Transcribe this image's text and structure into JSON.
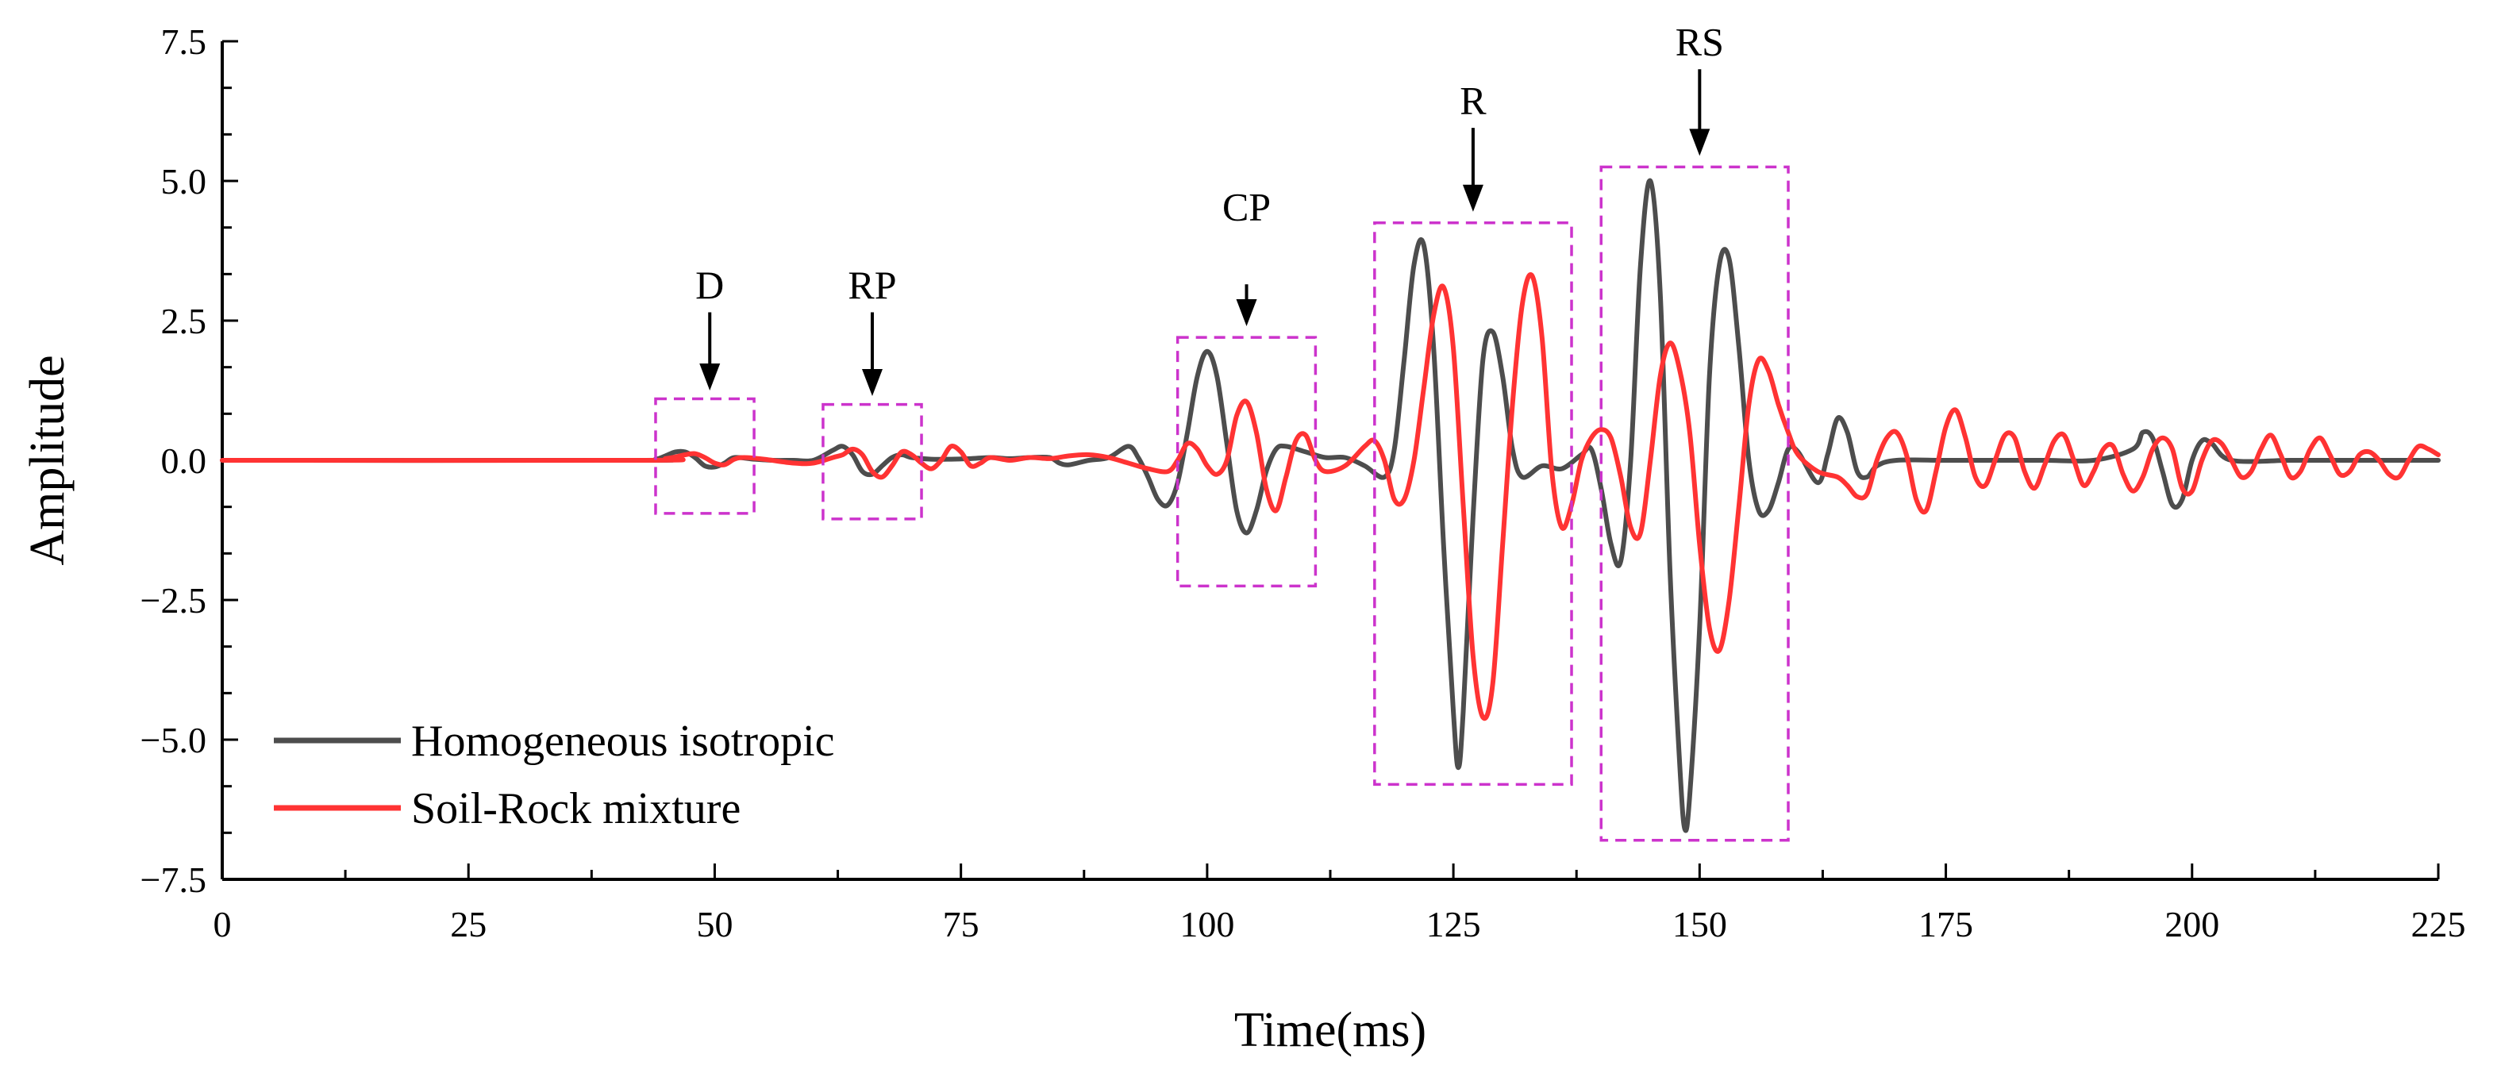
{
  "chart_data": {
    "type": "line",
    "title": "",
    "xlabel": "Time(ms)",
    "ylabel": "Amplitude",
    "xlim": [
      0,
      225
    ],
    "ylim": [
      -7.5,
      7.5
    ],
    "x_ticks": [
      "0",
      "25",
      "50",
      "75",
      "100",
      "125",
      "150",
      "175",
      "200",
      "225"
    ],
    "x_tick_values": [
      0,
      25,
      50,
      75,
      100,
      125,
      150,
      175,
      200,
      225
    ],
    "y_ticks": [
      "7.5",
      "5.0",
      "2.5",
      "0.0",
      "−2.5",
      "−5.0",
      "−7.5"
    ],
    "y_tick_values": [
      7.5,
      5.0,
      2.5,
      0.0,
      -2.5,
      -5.0,
      -7.5
    ],
    "grid": false,
    "legend_position": "bottom-left",
    "series": [
      {
        "name": "Homogeneous isotropic",
        "color": "#4d4d4d",
        "points": [
          [
            0,
            0
          ],
          [
            42,
            0
          ],
          [
            44,
            0.02
          ],
          [
            45,
            0.08
          ],
          [
            46,
            0.15
          ],
          [
            47,
            0.15
          ],
          [
            48,
            0.05
          ],
          [
            49,
            -0.1
          ],
          [
            50,
            -0.12
          ],
          [
            51,
            -0.05
          ],
          [
            52,
            0.05
          ],
          [
            54,
            0.02
          ],
          [
            56,
            0
          ],
          [
            58,
            0
          ],
          [
            60,
            0
          ],
          [
            62,
            0.18
          ],
          [
            63,
            0.25
          ],
          [
            64,
            0.1
          ],
          [
            65,
            -0.2
          ],
          [
            66,
            -0.25
          ],
          [
            67,
            -0.1
          ],
          [
            68,
            0.05
          ],
          [
            69,
            0.1
          ],
          [
            70,
            0.05
          ],
          [
            72,
            0.02
          ],
          [
            74,
            0.02
          ],
          [
            76,
            0.03
          ],
          [
            78,
            0.05
          ],
          [
            80,
            0.03
          ],
          [
            82,
            0.05
          ],
          [
            84,
            0.05
          ],
          [
            85,
            -0.05
          ],
          [
            86,
            -0.08
          ],
          [
            88,
            0
          ],
          [
            90,
            0.05
          ],
          [
            92,
            0.25
          ],
          [
            93,
            0.05
          ],
          [
            94,
            -0.3
          ],
          [
            95,
            -0.7
          ],
          [
            96,
            -0.8
          ],
          [
            97,
            -0.4
          ],
          [
            98,
            0.5
          ],
          [
            99,
            1.5
          ],
          [
            100,
            1.95
          ],
          [
            101,
            1.5
          ],
          [
            102,
            0.3
          ],
          [
            103,
            -0.9
          ],
          [
            104,
            -1.3
          ],
          [
            105,
            -0.9
          ],
          [
            106,
            -0.2
          ],
          [
            107,
            0.2
          ],
          [
            108,
            0.25
          ],
          [
            110,
            0.15
          ],
          [
            112,
            0.05
          ],
          [
            114,
            0.05
          ],
          [
            116,
            -0.1
          ],
          [
            118,
            -0.3
          ],
          [
            119,
            0.2
          ],
          [
            120,
            1.8
          ],
          [
            121,
            3.5
          ],
          [
            122,
            3.85
          ],
          [
            123,
            2.0
          ],
          [
            124,
            -1.5
          ],
          [
            125,
            -4.5
          ],
          [
            125.5,
            -5.5
          ],
          [
            126,
            -4.5
          ],
          [
            127,
            -1.0
          ],
          [
            128,
            1.8
          ],
          [
            129,
            2.3
          ],
          [
            130,
            1.5
          ],
          [
            131,
            0.2
          ],
          [
            132,
            -0.3
          ],
          [
            134,
            -0.1
          ],
          [
            136,
            -0.15
          ],
          [
            138,
            0.1
          ],
          [
            139,
            0.2
          ],
          [
            140,
            -0.5
          ],
          [
            141,
            -1.5
          ],
          [
            142,
            -1.8
          ],
          [
            143,
            0
          ],
          [
            144,
            3.5
          ],
          [
            145,
            5.0
          ],
          [
            146,
            3.0
          ],
          [
            147,
            -2.0
          ],
          [
            148,
            -5.5
          ],
          [
            148.5,
            -6.6
          ],
          [
            149,
            -6.0
          ],
          [
            150,
            -3.0
          ],
          [
            151,
            1.5
          ],
          [
            152,
            3.5
          ],
          [
            153,
            3.6
          ],
          [
            154,
            2.0
          ],
          [
            155,
            0
          ],
          [
            156,
            -0.9
          ],
          [
            157,
            -0.9
          ],
          [
            158,
            -0.4
          ],
          [
            159,
            0.2
          ],
          [
            160,
            0.15
          ],
          [
            162,
            -0.4
          ],
          [
            163,
            0.1
          ],
          [
            164,
            0.75
          ],
          [
            165,
            0.5
          ],
          [
            166,
            -0.2
          ],
          [
            167,
            -0.3
          ],
          [
            168,
            -0.1
          ],
          [
            170,
            0
          ],
          [
            175,
            0
          ],
          [
            180,
            0
          ],
          [
            185,
            0
          ],
          [
            190,
            0
          ],
          [
            194,
            0.2
          ],
          [
            195,
            0.5
          ],
          [
            196,
            0.4
          ],
          [
            197,
            -0.2
          ],
          [
            198,
            -0.8
          ],
          [
            199,
            -0.7
          ],
          [
            200,
            0
          ],
          [
            201,
            0.35
          ],
          [
            202,
            0.3
          ],
          [
            204,
            0
          ],
          [
            210,
            0
          ],
          [
            215,
            0
          ],
          [
            220,
            0
          ],
          [
            225,
            0
          ]
        ]
      },
      {
        "name": "Soil-Rock mixture",
        "color": "#ff3333",
        "points": [
          [
            0,
            0
          ],
          [
            43,
            0
          ],
          [
            45,
            0.03
          ],
          [
            46,
            0.06
          ],
          [
            47,
            0.1
          ],
          [
            48,
            0.12
          ],
          [
            49,
            0.05
          ],
          [
            50,
            -0.05
          ],
          [
            51,
            -0.08
          ],
          [
            52,
            0.02
          ],
          [
            53,
            0.05
          ],
          [
            55,
            0.02
          ],
          [
            58,
            -0.05
          ],
          [
            60,
            -0.05
          ],
          [
            62,
            0.05
          ],
          [
            63,
            0.1
          ],
          [
            64,
            0.2
          ],
          [
            65,
            0.1
          ],
          [
            66,
            -0.2
          ],
          [
            67,
            -0.3
          ],
          [
            68,
            -0.1
          ],
          [
            69,
            0.15
          ],
          [
            70,
            0.1
          ],
          [
            71,
            -0.05
          ],
          [
            72,
            -0.15
          ],
          [
            73,
            0
          ],
          [
            74,
            0.25
          ],
          [
            75,
            0.15
          ],
          [
            76,
            -0.1
          ],
          [
            77,
            -0.05
          ],
          [
            78,
            0.05
          ],
          [
            80,
            0
          ],
          [
            82,
            0.05
          ],
          [
            84,
            0.03
          ],
          [
            86,
            0.08
          ],
          [
            88,
            0.1
          ],
          [
            90,
            0.05
          ],
          [
            92,
            -0.05
          ],
          [
            94,
            -0.15
          ],
          [
            96,
            -0.2
          ],
          [
            97,
            0
          ],
          [
            98,
            0.3
          ],
          [
            99,
            0.2
          ],
          [
            100,
            -0.1
          ],
          [
            101,
            -0.25
          ],
          [
            102,
            0
          ],
          [
            103,
            0.8
          ],
          [
            104,
            1.05
          ],
          [
            105,
            0.5
          ],
          [
            106,
            -0.5
          ],
          [
            107,
            -0.9
          ],
          [
            108,
            -0.3
          ],
          [
            109,
            0.35
          ],
          [
            110,
            0.45
          ],
          [
            111,
            0
          ],
          [
            112,
            -0.2
          ],
          [
            114,
            -0.1
          ],
          [
            116,
            0.25
          ],
          [
            117,
            0.35
          ],
          [
            118,
            0
          ],
          [
            119,
            -0.7
          ],
          [
            120,
            -0.7
          ],
          [
            121,
            0
          ],
          [
            122,
            1.3
          ],
          [
            123,
            2.6
          ],
          [
            124,
            3.1
          ],
          [
            125,
            2.0
          ],
          [
            126,
            -0.8
          ],
          [
            127,
            -3.5
          ],
          [
            128,
            -4.6
          ],
          [
            129,
            -4.0
          ],
          [
            130,
            -1.5
          ],
          [
            131,
            1.0
          ],
          [
            132,
            2.8
          ],
          [
            133,
            3.3
          ],
          [
            134,
            2.2
          ],
          [
            135,
            -0.2
          ],
          [
            136,
            -1.2
          ],
          [
            137,
            -0.8
          ],
          [
            138,
            0
          ],
          [
            139,
            0.4
          ],
          [
            140,
            0.55
          ],
          [
            141,
            0.4
          ],
          [
            142,
            -0.3
          ],
          [
            143,
            -1.2
          ],
          [
            144,
            -1.3
          ],
          [
            145,
            0
          ],
          [
            146,
            1.5
          ],
          [
            147,
            2.1
          ],
          [
            148,
            1.6
          ],
          [
            149,
            0.5
          ],
          [
            150,
            -1.5
          ],
          [
            151,
            -3.0
          ],
          [
            152,
            -3.4
          ],
          [
            153,
            -2.5
          ],
          [
            154,
            -0.8
          ],
          [
            155,
            1.0
          ],
          [
            156,
            1.8
          ],
          [
            157,
            1.6
          ],
          [
            158,
            1.0
          ],
          [
            159,
            0.5
          ],
          [
            160,
            0.1
          ],
          [
            162,
            -0.2
          ],
          [
            164,
            -0.3
          ],
          [
            165,
            -0.45
          ],
          [
            166,
            -0.65
          ],
          [
            167,
            -0.6
          ],
          [
            168,
            0
          ],
          [
            169,
            0.4
          ],
          [
            170,
            0.5
          ],
          [
            171,
            0.1
          ],
          [
            172,
            -0.7
          ],
          [
            173,
            -0.9
          ],
          [
            174,
            -0.2
          ],
          [
            175,
            0.6
          ],
          [
            176,
            0.9
          ],
          [
            177,
            0.4
          ],
          [
            178,
            -0.3
          ],
          [
            179,
            -0.45
          ],
          [
            180,
            0
          ],
          [
            181,
            0.45
          ],
          [
            182,
            0.4
          ],
          [
            183,
            -0.2
          ],
          [
            184,
            -0.5
          ],
          [
            185,
            -0.1
          ],
          [
            186,
            0.35
          ],
          [
            187,
            0.45
          ],
          [
            188,
            0
          ],
          [
            189,
            -0.45
          ],
          [
            190,
            -0.2
          ],
          [
            191,
            0.2
          ],
          [
            192,
            0.25
          ],
          [
            193,
            -0.25
          ],
          [
            194,
            -0.55
          ],
          [
            195,
            -0.3
          ],
          [
            196,
            0.2
          ],
          [
            197,
            0.4
          ],
          [
            198,
            0.2
          ],
          [
            199,
            -0.5
          ],
          [
            200,
            -0.55
          ],
          [
            201,
            0
          ],
          [
            202,
            0.35
          ],
          [
            203,
            0.3
          ],
          [
            204,
            0
          ],
          [
            205,
            -0.3
          ],
          [
            206,
            -0.2
          ],
          [
            207,
            0.2
          ],
          [
            208,
            0.45
          ],
          [
            209,
            0.1
          ],
          [
            210,
            -0.3
          ],
          [
            211,
            -0.2
          ],
          [
            212,
            0.2
          ],
          [
            213,
            0.4
          ],
          [
            214,
            0.1
          ],
          [
            215,
            -0.25
          ],
          [
            216,
            -0.2
          ],
          [
            217,
            0.1
          ],
          [
            218,
            0.15
          ],
          [
            219,
            0
          ],
          [
            220,
            -0.25
          ],
          [
            221,
            -0.3
          ],
          [
            222,
            0
          ],
          [
            223,
            0.25
          ],
          [
            224,
            0.2
          ],
          [
            225,
            0.1
          ]
        ]
      }
    ],
    "annotations": [
      {
        "label": "D",
        "x0": 44,
        "x1": 54,
        "y0": -0.95,
        "y1": 1.1,
        "arrow_x": 49.5,
        "arrow_y_top": 2.65,
        "arrow_y_tip": 1.25,
        "label_y": 2.9
      },
      {
        "label": "RP",
        "x0": 61,
        "x1": 71,
        "y0": -1.05,
        "y1": 1.0,
        "arrow_x": 66,
        "arrow_y_top": 2.65,
        "arrow_y_tip": 1.15,
        "label_y": 2.9
      },
      {
        "label": "CP",
        "x0": 97,
        "x1": 111,
        "y0": -2.25,
        "y1": 2.2,
        "arrow_x": 104,
        "arrow_y_top": 3.15,
        "arrow_y_tip": 2.4,
        "label_y": 4.3
      },
      {
        "label": "R",
        "x0": 117,
        "x1": 137,
        "y0": -5.8,
        "y1": 4.25,
        "arrow_x": 127,
        "arrow_y_top": 5.95,
        "arrow_y_tip": 4.45,
        "label_y": 6.2
      },
      {
        "label": "RS",
        "x0": 140,
        "x1": 159,
        "y0": -6.8,
        "y1": 5.25,
        "arrow_x": 150,
        "arrow_y_top": 7.0,
        "arrow_y_tip": 5.45,
        "label_y": 7.25
      }
    ],
    "annotation_color": "#cc33cc"
  }
}
